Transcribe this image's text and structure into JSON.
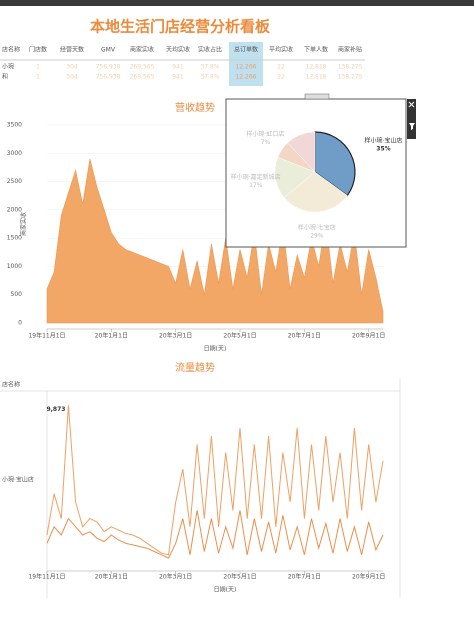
{
  "header": {
    "title": "本地生活门店经营分析看板"
  },
  "table": {
    "columns": [
      "店名称",
      "门店数",
      "经营天数",
      "GMV",
      "商家实收",
      "天均实收",
      "实收占比",
      "总订单数",
      "平均实收",
      "下单人数",
      "商家补贴"
    ],
    "rows": [
      [
        "小琬",
        "1",
        "304",
        "756,938",
        "269,565",
        "941",
        "37.8%",
        "12,266",
        "22",
        "12,818",
        "138,275"
      ],
      [
        "和",
        "1",
        "304",
        "756,938",
        "269,565",
        "941",
        "37.8%",
        "12,266",
        "22",
        "12,818",
        "138,275"
      ]
    ]
  },
  "chart_data": [
    {
      "type": "area",
      "title": "营收趋势",
      "x_label": "日期(天)",
      "y_label": "商家实收",
      "color": "#f2a766",
      "categories": [
        "19年11月1日",
        null,
        null,
        null,
        null,
        null,
        null,
        null,
        null,
        "20年1月1日",
        null,
        null,
        null,
        null,
        null,
        null,
        null,
        null,
        "20年3月1日",
        null,
        null,
        null,
        null,
        null,
        null,
        null,
        null,
        "20年5月1日",
        null,
        null,
        null,
        null,
        null,
        null,
        null,
        null,
        "20年7月1日",
        null,
        null,
        null,
        null,
        null,
        null,
        null,
        null,
        "20年9月1日",
        null,
        null
      ],
      "values": [
        600,
        900,
        1900,
        2300,
        2700,
        2100,
        2900,
        2400,
        2000,
        1600,
        1400,
        1300,
        1250,
        1200,
        1150,
        1100,
        1050,
        1000,
        700,
        1300,
        600,
        1100,
        500,
        1400,
        700,
        1500,
        600,
        1300,
        800,
        1600,
        500,
        1400,
        900,
        1700,
        600,
        1200,
        800,
        1500,
        1000,
        1800,
        700,
        1400,
        900,
        1600,
        500,
        1300,
        800,
        200
      ],
      "ylim": [
        0,
        3500
      ],
      "yticks": [
        0,
        500,
        1000,
        1500,
        2000,
        2500,
        3000,
        3500
      ],
      "grid": true
    },
    {
      "type": "pie",
      "categories": [
        "样小琬·宝山店",
        "样小琬·七宝店",
        "样小琬·嘉定新城店",
        "样小琬·虹口店",
        null
      ],
      "values": [
        35,
        29,
        17,
        7,
        12
      ],
      "value_labels": [
        "35%",
        "29%",
        "17%",
        "7%",
        null
      ],
      "colors": [
        "#6f9dc8",
        "#f4ead8",
        "#e9edd9",
        "#f3d6c3",
        "#f2d7d7"
      ]
    },
    {
      "type": "line",
      "title": "流量趋势",
      "x_label": "日期(天)",
      "row_header": "店名称",
      "row_label": "小琬·宝山店",
      "categories": [
        "19年11月1日",
        null,
        null,
        null,
        null,
        null,
        null,
        null,
        null,
        "20年1月1日",
        null,
        null,
        null,
        null,
        null,
        null,
        null,
        null,
        "20年3月1日",
        null,
        null,
        null,
        null,
        null,
        null,
        null,
        null,
        "20年5月1日",
        null,
        null,
        null,
        null,
        null,
        null,
        null,
        null,
        "20年7月1日",
        null,
        null,
        null,
        null,
        null,
        null,
        null,
        null,
        "20年9月1日",
        null,
        null
      ],
      "ylim": [
        0,
        10800
      ],
      "series": [
        {
          "color": "#f0a062",
          "values": [
            2000,
            4500,
            3000,
            9873,
            4000,
            2500,
            3000,
            2800,
            2200,
            2500,
            2300,
            2100,
            2000,
            1800,
            1500,
            1200,
            900,
            800,
            4000,
            6000,
            2500,
            7500,
            3000,
            8000,
            2500,
            7000,
            3500,
            8500,
            3000,
            7500,
            3000,
            8000,
            2500,
            7000,
            4000,
            8500,
            3000,
            7500,
            3500,
            8000,
            4000,
            7000,
            3000,
            8500,
            3500,
            7500,
            4000,
            6500
          ],
          "value_labels": [
            null,
            null,
            null,
            "9,873",
            null,
            null,
            null,
            null,
            null,
            null,
            null,
            null,
            null,
            null,
            null,
            null,
            null,
            null,
            null,
            null,
            null,
            null,
            null,
            null,
            null,
            null,
            null,
            null,
            null,
            null,
            null,
            null,
            null,
            null,
            null,
            null,
            null,
            null,
            null,
            null,
            null,
            null,
            null,
            null,
            null,
            null,
            null,
            null
          ]
        },
        {
          "color": "#ec8f4a",
          "values": [
            1500,
            2500,
            2000,
            3000,
            2500,
            2000,
            2200,
            1800,
            1600,
            2000,
            1700,
            1500,
            1400,
            1300,
            1200,
            1000,
            800,
            600,
            1500,
            3000,
            800,
            3500,
            1000,
            3000,
            900,
            2500,
            1200,
            3500,
            800,
            3000,
            1000,
            2800,
            900,
            3200,
            1100,
            2500,
            800,
            3000,
            1200,
            2700,
            900,
            3000,
            1000,
            2500,
            800,
            2800,
            1100,
            2000
          ]
        }
      ]
    }
  ]
}
